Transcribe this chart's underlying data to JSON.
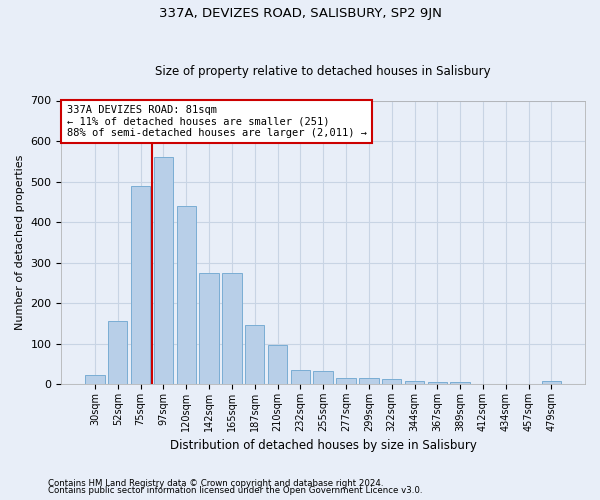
{
  "title": "337A, DEVIZES ROAD, SALISBURY, SP2 9JN",
  "subtitle": "Size of property relative to detached houses in Salisbury",
  "xlabel": "Distribution of detached houses by size in Salisbury",
  "ylabel": "Number of detached properties",
  "footnote1": "Contains HM Land Registry data © Crown copyright and database right 2024.",
  "footnote2": "Contains public sector information licensed under the Open Government Licence v3.0.",
  "categories": [
    "30sqm",
    "52sqm",
    "75sqm",
    "97sqm",
    "120sqm",
    "142sqm",
    "165sqm",
    "187sqm",
    "210sqm",
    "232sqm",
    "255sqm",
    "277sqm",
    "299sqm",
    "322sqm",
    "344sqm",
    "367sqm",
    "389sqm",
    "412sqm",
    "434sqm",
    "457sqm",
    "479sqm"
  ],
  "values": [
    22,
    155,
    490,
    560,
    440,
    275,
    275,
    145,
    97,
    35,
    33,
    15,
    14,
    12,
    8,
    6,
    6,
    0,
    0,
    0,
    7
  ],
  "bar_color": "#b8cfe8",
  "bar_edge_color": "#7aadd4",
  "grid_color": "#c8d4e4",
  "background_color": "#e8eef8",
  "vline_color": "#cc0000",
  "vline_x": 2.5,
  "annotation_line1": "337A DEVIZES ROAD: 81sqm",
  "annotation_line2": "← 11% of detached houses are smaller (251)",
  "annotation_line3": "88% of semi-detached houses are larger (2,011) →",
  "annotation_box_color": "#ffffff",
  "annotation_box_edge": "#cc0000",
  "ylim": [
    0,
    700
  ],
  "yticks": [
    0,
    100,
    200,
    300,
    400,
    500,
    600,
    700
  ]
}
